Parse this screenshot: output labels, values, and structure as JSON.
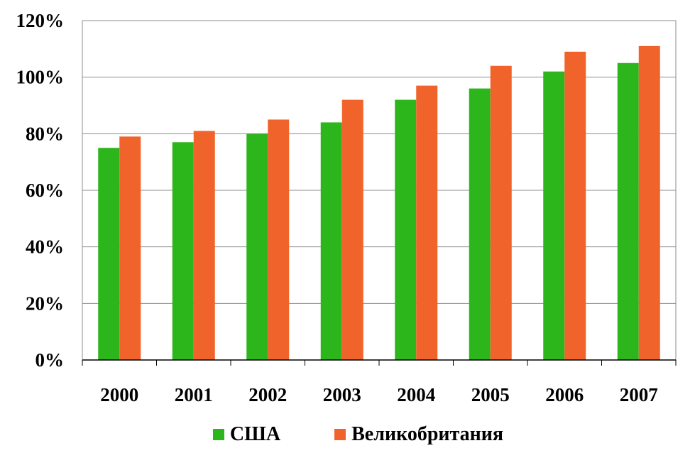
{
  "chart_data": {
    "type": "bar",
    "title": "",
    "xlabel": "",
    "ylabel": "",
    "categories": [
      "2000",
      "2001",
      "2002",
      "2003",
      "2004",
      "2005",
      "2006",
      "2007"
    ],
    "series": [
      {
        "name": "США",
        "color": "#2db51c",
        "values": [
          75,
          77,
          80,
          84,
          92,
          96,
          102,
          105
        ]
      },
      {
        "name": "Великобритания",
        "color": "#f0642c",
        "values": [
          79,
          81,
          85,
          92,
          97,
          104,
          109,
          111
        ]
      }
    ],
    "ylim": [
      0,
      120
    ],
    "yticks": [
      0,
      20,
      40,
      60,
      80,
      100,
      120
    ],
    "ytick_labels": [
      "0%",
      "20%",
      "40%",
      "60%",
      "80%",
      "100%",
      "120%"
    ],
    "grid": true,
    "legend_position": "bottom"
  }
}
